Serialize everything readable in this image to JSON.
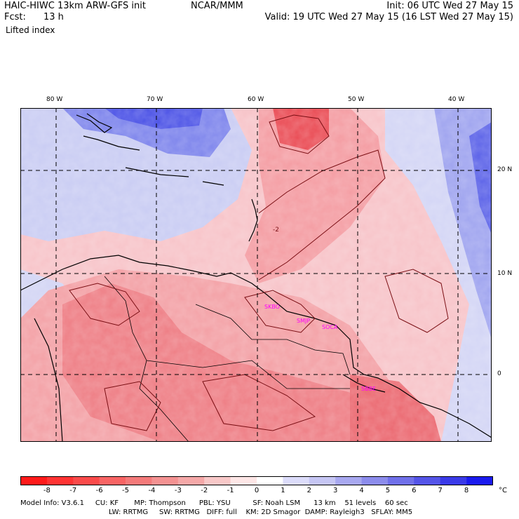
{
  "header": {
    "model": "HAIC-HIWC 13km ARW-GFS init",
    "center": "NCAR/MMM",
    "init": "Init: 06 UTC Wed 27 May 15",
    "fcst_label": "Fcst:",
    "fcst_value": "13 h",
    "valid": "Valid: 19 UTC Wed 27 May 15 (16 LST Wed 27 May 15)",
    "field": "Lifted index"
  },
  "map": {
    "lon_labels": [
      "80 W",
      "70 W",
      "60 W",
      "50 W",
      "40 W"
    ],
    "lat_labels": [
      "20 N",
      "10 N",
      "0"
    ],
    "stations": [
      "SKBO",
      "SMJP",
      "SOCA",
      "SBBE"
    ],
    "contour_label": "-2",
    "colors": {
      "strong_unstable": "#e8282e",
      "unstable": "#f28a8e",
      "weak": "#fcd9dc",
      "neutral": "#ffffff",
      "stable": "#c6c9f2",
      "strong_stable": "#3b44e6",
      "coast": "#000000",
      "contour": "#7a0f14",
      "station": "#ff00ff"
    }
  },
  "colorbar": {
    "labels": [
      "-8",
      "-7",
      "-6",
      "-5",
      "-4",
      "-3",
      "-2",
      "-1",
      "0",
      "1",
      "2",
      "3",
      "4",
      "5",
      "6",
      "7",
      "8"
    ],
    "unit": "°C",
    "colors": [
      "#ff1a1a",
      "#ff3333",
      "#fa4a4a",
      "#f86464",
      "#f47a7a",
      "#f49292",
      "#f5a8a8",
      "#f8c8c8",
      "#fde6e6",
      "#ffffff",
      "#dcdcfa",
      "#c6c6f4",
      "#a8a8f0",
      "#8c8cec",
      "#7070ea",
      "#5454e8",
      "#3a3ae8",
      "#1a1aee"
    ]
  },
  "footer": {
    "line1": "Model Info: V3.6.1     CU: KF       MP: Thompson      PBL: YSU          SF: Noah LSM      13 km    51 levels    60 sec",
    "line2": "LW: RRTMG     SW: RRTMG   DIFF: full    KM: 2D Smagor  DAMP: Rayleigh3   SFLAY: MM5"
  }
}
